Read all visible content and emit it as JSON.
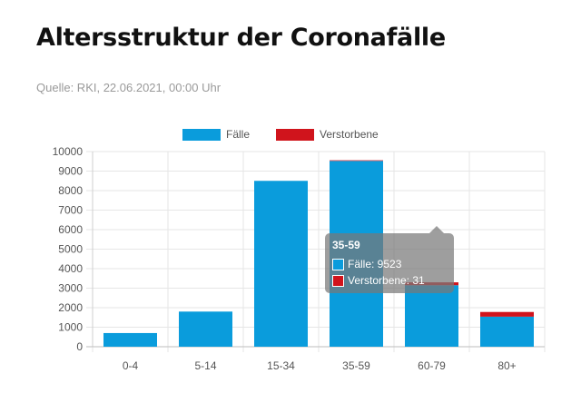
{
  "header": {
    "title": "Altersstruktur der Coronafälle",
    "source": "Quelle: RKI, 22.06.2021, 00:00 Uhr"
  },
  "colors": {
    "faelle": "#0a9cdc",
    "verstorbene": "#d0141c"
  },
  "chart_data": {
    "type": "bar",
    "stacked": true,
    "categories": [
      "0-4",
      "5-14",
      "15-34",
      "35-59",
      "60-79",
      "80+"
    ],
    "series": [
      {
        "name": "Fälle",
        "values": [
          700,
          1800,
          8500,
          9523,
          3150,
          1540
        ]
      },
      {
        "name": "Verstorbene",
        "values": [
          0,
          0,
          0,
          31,
          150,
          240
        ]
      }
    ],
    "ylim": [
      0,
      10000
    ],
    "yticks": [
      0,
      1000,
      2000,
      3000,
      4000,
      5000,
      6000,
      7000,
      8000,
      9000,
      10000
    ],
    "legend_position": "top-center",
    "grid": true
  },
  "tooltip": {
    "title": "35-59",
    "rows": [
      {
        "label": "Fälle: 9523"
      },
      {
        "label": "Verstorbene: 31"
      }
    ]
  }
}
